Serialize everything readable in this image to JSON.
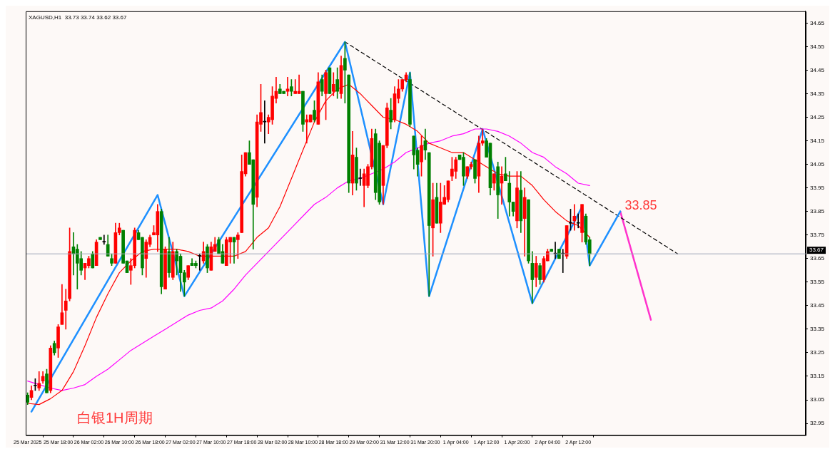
{
  "chart_data": {
    "type": "candlestick",
    "title": "XAGUSD,H1  33.73 33.74 33.62 33.67",
    "annotations": [
      "白银1H周期",
      "33.85"
    ],
    "categories": [
      "25 Mar 2025",
      null,
      null,
      null,
      null,
      null,
      null,
      null,
      "25 Mar 18:00",
      null,
      null,
      null,
      null,
      null,
      null,
      null,
      "26 Mar 02:00",
      null,
      null,
      null,
      null,
      null,
      null,
      null,
      "26 Mar 10:00",
      null,
      null,
      null,
      null,
      null,
      null,
      null,
      "26 Mar 18:00",
      null,
      null,
      null,
      null,
      null,
      null,
      null,
      "27 Mar 02:00",
      null,
      null,
      null,
      null,
      null,
      null,
      null,
      "27 Mar 10:00",
      null,
      null,
      null,
      null,
      null,
      null,
      null,
      "27 Mar 18:00",
      null,
      null,
      null,
      null,
      null,
      null,
      null,
      "28 Mar 02:00",
      null,
      null,
      null,
      null,
      null,
      null,
      null,
      "28 Mar 10:00",
      null,
      null,
      null,
      null,
      null,
      null,
      null,
      "28 Mar 18:00",
      null,
      null,
      null,
      null,
      null,
      null,
      null,
      "29 Mar 02:00",
      null,
      null,
      null,
      null,
      null,
      null,
      null,
      "31 Mar 12:00",
      null,
      null,
      null,
      null,
      null,
      null,
      null,
      "31 Mar 20:00",
      null,
      null,
      null,
      null,
      null,
      null,
      null,
      "1 Apr 04:00",
      null,
      null,
      null,
      null,
      null,
      null,
      null,
      "1 Apr 12:00",
      null,
      null,
      null,
      null,
      null,
      null,
      null,
      "1 Apr 20:00",
      null,
      null,
      null,
      null,
      null,
      null,
      null,
      "2 Apr 04:00",
      null,
      null,
      null,
      null,
      null,
      null,
      null,
      "2 Apr 12:00",
      null,
      null,
      null,
      null,
      null,
      null,
      null,
      null,
      null,
      null,
      null,
      null,
      null,
      null,
      null,
      null,
      null,
      null,
      null,
      null,
      null,
      null,
      null,
      null,
      null,
      null,
      null,
      null,
      null,
      null,
      null,
      null,
      null,
      null,
      null,
      null,
      null,
      null,
      null,
      null,
      null,
      null,
      null,
      null,
      null,
      null,
      null,
      null,
      null,
      null,
      null,
      null,
      null,
      null,
      null,
      null,
      null,
      null,
      null
    ],
    "ohlc": [
      [
        33.07,
        33.08,
        33.03,
        33.04
      ],
      [
        33.06,
        33.11,
        33.05,
        33.09
      ],
      [
        33.11,
        33.14,
        33.09,
        33.11
      ],
      [
        33.1,
        33.17,
        33.09,
        33.12
      ],
      [
        33.13,
        33.17,
        33.12,
        33.15
      ],
      [
        33.16,
        33.18,
        33.08,
        33.08
      ],
      [
        33.09,
        33.28,
        33.08,
        33.27
      ],
      [
        33.29,
        33.3,
        33.24,
        33.25
      ],
      [
        33.27,
        33.37,
        33.23,
        33.36
      ],
      [
        33.37,
        33.54,
        33.37,
        33.42
      ],
      [
        33.43,
        33.52,
        33.35,
        33.47
      ],
      [
        33.48,
        33.78,
        33.47,
        33.68
      ],
      [
        33.7,
        33.76,
        33.58,
        33.67
      ],
      [
        33.69,
        33.71,
        33.52,
        33.63
      ],
      [
        33.65,
        33.68,
        33.58,
        33.6
      ],
      [
        33.61,
        33.63,
        33.56,
        33.63
      ],
      [
        33.62,
        33.66,
        33.61,
        33.65
      ],
      [
        33.67,
        33.68,
        33.61,
        33.61
      ],
      [
        33.62,
        33.73,
        33.62,
        33.72
      ],
      [
        33.74,
        33.74,
        33.73,
        33.73
      ],
      [
        33.72,
        33.75,
        33.71,
        33.72
      ],
      [
        33.71,
        33.75,
        33.66,
        33.66
      ],
      [
        33.65,
        33.67,
        33.62,
        33.63
      ],
      [
        33.63,
        33.8,
        33.63,
        33.76
      ],
      [
        33.76,
        33.8,
        33.75,
        33.78
      ],
      [
        33.77,
        33.77,
        33.63,
        33.63
      ],
      [
        33.64,
        33.64,
        33.59,
        33.59
      ],
      [
        33.6,
        33.65,
        33.54,
        33.62
      ],
      [
        33.62,
        33.78,
        33.61,
        33.77
      ],
      [
        33.76,
        33.77,
        33.73,
        33.73
      ],
      [
        33.74,
        33.74,
        33.58,
        33.61
      ],
      [
        33.65,
        33.73,
        33.57,
        33.72
      ],
      [
        33.71,
        33.75,
        33.7,
        33.74
      ],
      [
        33.75,
        33.79,
        33.75,
        33.76
      ],
      [
        33.75,
        33.88,
        33.68,
        33.85
      ],
      [
        33.85,
        33.86,
        33.5,
        33.53
      ],
      [
        33.52,
        33.7,
        33.52,
        33.69
      ],
      [
        33.68,
        33.74,
        33.57,
        33.59
      ],
      [
        33.57,
        33.72,
        33.56,
        33.68
      ],
      [
        33.68,
        33.69,
        33.58,
        33.64
      ],
      [
        33.66,
        33.67,
        33.51,
        33.59
      ],
      [
        33.59,
        33.6,
        33.49,
        33.55
      ],
      [
        33.57,
        33.62,
        33.56,
        33.62
      ],
      [
        33.63,
        33.65,
        33.62,
        33.62
      ],
      [
        33.63,
        33.64,
        33.61,
        33.62
      ],
      [
        33.66,
        33.67,
        33.6,
        33.66
      ],
      [
        33.64,
        33.72,
        33.63,
        33.68
      ],
      [
        33.7,
        33.71,
        33.59,
        33.61
      ],
      [
        33.6,
        33.72,
        33.6,
        33.7
      ],
      [
        33.68,
        33.74,
        33.68,
        33.71
      ],
      [
        33.73,
        33.74,
        33.67,
        33.67
      ],
      [
        33.68,
        33.71,
        33.63,
        33.63
      ],
      [
        33.62,
        33.74,
        33.62,
        33.73
      ],
      [
        33.72,
        33.74,
        33.63,
        33.74
      ],
      [
        33.74,
        33.74,
        33.63,
        33.72
      ],
      [
        33.73,
        33.76,
        33.65,
        33.75
      ],
      [
        33.76,
        34.09,
        33.76,
        34.02
      ],
      [
        34.01,
        34.1,
        34.0,
        34.1
      ],
      [
        34.1,
        34.15,
        34.05,
        34.05
      ],
      [
        34.07,
        34.07,
        33.69,
        33.88
      ],
      [
        33.91,
        34.26,
        33.87,
        34.23
      ],
      [
        34.22,
        34.39,
        34.19,
        34.27
      ],
      [
        34.23,
        34.32,
        34.14,
        34.23
      ],
      [
        34.23,
        34.26,
        34.18,
        34.25
      ],
      [
        34.24,
        34.38,
        34.22,
        34.34
      ],
      [
        34.33,
        34.42,
        34.31,
        34.36
      ],
      [
        34.37,
        34.39,
        34.35,
        34.35
      ],
      [
        34.36,
        34.36,
        34.35,
        34.35
      ],
      [
        34.36,
        34.42,
        34.34,
        34.37
      ],
      [
        34.38,
        34.41,
        34.34,
        34.36
      ],
      [
        34.35,
        34.41,
        34.35,
        34.36
      ],
      [
        34.35,
        34.43,
        34.35,
        34.36
      ],
      [
        34.36,
        34.36,
        34.19,
        34.22
      ],
      [
        34.23,
        34.26,
        34.14,
        34.24
      ],
      [
        34.23,
        34.26,
        34.23,
        34.26
      ],
      [
        34.28,
        34.32,
        34.23,
        34.24
      ],
      [
        34.22,
        34.44,
        34.22,
        34.4
      ],
      [
        34.41,
        34.43,
        34.34,
        34.36
      ],
      [
        34.35,
        34.45,
        34.24,
        34.44
      ],
      [
        34.46,
        34.46,
        34.35,
        34.35
      ],
      [
        34.36,
        34.44,
        34.34,
        34.39
      ],
      [
        34.41,
        34.46,
        34.33,
        34.36
      ],
      [
        34.35,
        34.51,
        34.33,
        34.47
      ],
      [
        34.5,
        34.57,
        34.31,
        34.45
      ],
      [
        34.43,
        34.43,
        33.93,
        33.97
      ],
      [
        33.97,
        34.19,
        33.92,
        34.09
      ],
      [
        34.08,
        34.12,
        33.94,
        33.97
      ],
      [
        33.99,
        34.03,
        33.96,
        33.99
      ],
      [
        33.96,
        34.03,
        33.87,
        34.01
      ],
      [
        33.96,
        34.05,
        33.95,
        34.04
      ],
      [
        34.04,
        34.2,
        34.03,
        34.16
      ],
      [
        34.18,
        34.2,
        33.9,
        33.93
      ],
      [
        34.14,
        34.15,
        33.88,
        33.89
      ],
      [
        33.96,
        34.13,
        33.88,
        34.13
      ],
      [
        34.13,
        34.31,
        34.12,
        34.29
      ],
      [
        34.28,
        34.33,
        34.2,
        34.23
      ],
      [
        34.24,
        34.38,
        34.23,
        34.35
      ],
      [
        34.33,
        34.41,
        34.31,
        34.37
      ],
      [
        34.37,
        34.41,
        34.36,
        34.41
      ],
      [
        34.41,
        34.44,
        34.4,
        34.43
      ],
      [
        34.41,
        34.44,
        34.21,
        34.22
      ],
      [
        34.17,
        34.17,
        34.03,
        34.09
      ],
      [
        34.11,
        34.12,
        34.0,
        34.05
      ],
      [
        34.06,
        34.17,
        34.0,
        34.13
      ],
      [
        34.15,
        34.2,
        34.07,
        34.11
      ],
      [
        34.1,
        34.1,
        33.49,
        33.79
      ],
      [
        33.78,
        33.97,
        33.66,
        33.9
      ],
      [
        33.91,
        33.97,
        33.8,
        33.8
      ],
      [
        33.8,
        33.97,
        33.76,
        33.89
      ],
      [
        33.88,
        33.96,
        33.88,
        33.91
      ],
      [
        33.9,
        33.98,
        33.89,
        33.98
      ],
      [
        34.0,
        34.08,
        33.98,
        34.03
      ],
      [
        34.02,
        34.08,
        33.99,
        34.07
      ],
      [
        34.09,
        34.09,
        34.07,
        34.07
      ],
      [
        34.08,
        34.1,
        33.96,
        34.0
      ],
      [
        34.0,
        34.04,
        33.99,
        34.04
      ],
      [
        34.04,
        34.06,
        34.03,
        34.05
      ],
      [
        34.07,
        34.07,
        33.97,
        33.99
      ],
      [
        34.0,
        34.17,
        33.93,
        34.14
      ],
      [
        34.14,
        34.2,
        34.13,
        34.15
      ],
      [
        34.15,
        34.16,
        34.08,
        34.08
      ],
      [
        34.14,
        34.14,
        33.92,
        33.95
      ],
      [
        33.97,
        34.01,
        33.94,
        34.01
      ],
      [
        34.04,
        34.06,
        33.82,
        33.92
      ],
      [
        33.97,
        34.04,
        33.88,
        34.0
      ],
      [
        34.01,
        34.08,
        33.98,
        33.98
      ],
      [
        33.97,
        34.02,
        33.83,
        33.89
      ],
      [
        33.89,
        33.89,
        33.83,
        33.85
      ],
      [
        33.81,
        34.02,
        33.78,
        33.95
      ],
      [
        33.94,
        34.02,
        33.76,
        33.81
      ],
      [
        33.82,
        33.95,
        33.66,
        33.91
      ],
      [
        33.9,
        33.9,
        33.63,
        33.64
      ],
      [
        33.63,
        33.68,
        33.46,
        33.56
      ],
      [
        33.57,
        33.66,
        33.53,
        33.63
      ],
      [
        33.62,
        33.63,
        33.54,
        33.56
      ],
      [
        33.56,
        33.66,
        33.55,
        33.65
      ],
      [
        33.64,
        33.69,
        33.64,
        33.68
      ],
      [
        33.69,
        33.69,
        33.68,
        33.68
      ],
      [
        33.67,
        33.72,
        33.65,
        33.67
      ],
      [
        33.69,
        33.69,
        33.65,
        33.65
      ],
      [
        33.67,
        33.69,
        33.59,
        33.67
      ],
      [
        33.66,
        33.79,
        33.65,
        33.79
      ],
      [
        33.8,
        33.86,
        33.77,
        33.8
      ],
      [
        33.81,
        33.88,
        33.77,
        33.83
      ],
      [
        33.8,
        33.84,
        33.78,
        33.8
      ],
      [
        33.76,
        33.88,
        33.72,
        33.88
      ],
      [
        33.83,
        33.84,
        33.71,
        33.72
      ],
      [
        33.73,
        33.74,
        33.62,
        33.67
      ],
      null,
      null,
      null,
      null,
      null,
      null,
      null,
      null,
      null,
      null,
      null,
      null,
      null,
      null,
      null,
      null,
      null,
      null,
      null,
      null,
      null,
      null,
      null,
      null,
      null,
      null,
      null,
      null,
      null,
      null,
      null,
      null,
      null,
      null,
      null,
      null,
      null,
      null,
      null,
      null,
      null,
      null,
      null,
      null,
      null,
      null,
      null,
      null,
      null,
      null,
      null,
      null,
      null,
      null,
      null,
      null
    ],
    "colors": [
      "#008000",
      "#ff0000",
      "#000000",
      "#ff0000",
      "#ff0000",
      "#008000",
      "#ff0000",
      "#008000",
      "#ff0000",
      "#ff0000",
      "#ff0000",
      "#ff0000",
      "#008000",
      "#008000",
      "#008000",
      "#ff0000",
      "#ff0000",
      "#008000",
      "#ff0000",
      "#008000",
      "#000000",
      "#008000",
      "#008000",
      "#ff0000",
      "#ff0000",
      "#008000",
      "#008000",
      "#ff0000",
      "#ff0000",
      "#008000",
      "#008000",
      "#ff0000",
      "#ff0000",
      "#ff0000",
      "#ff0000",
      "#008000",
      "#ff0000",
      "#008000",
      "#ff0000",
      "#008000",
      "#008000",
      "#008000",
      "#ff0000",
      "#008000",
      "#008000",
      "#000000",
      "#ff0000",
      "#008000",
      "#ff0000",
      "#ff0000",
      "#008000",
      "#008000",
      "#ff0000",
      "#ff0000",
      "#008000",
      "#ff0000",
      "#ff0000",
      "#ff0000",
      "#008000",
      "#008000",
      "#ff0000",
      "#ff0000",
      "#000000",
      "#ff0000",
      "#ff0000",
      "#ff0000",
      "#008000",
      "#008000",
      "#ff0000",
      "#008000",
      "#ff0000",
      "#ff0000",
      "#008000",
      "#ff0000",
      "#ff0000",
      "#008000",
      "#ff0000",
      "#008000",
      "#ff0000",
      "#008000",
      "#ff0000",
      "#008000",
      "#ff0000",
      "#008000",
      "#008000",
      "#ff0000",
      "#008000",
      "#000000",
      "#ff0000",
      "#ff0000",
      "#ff0000",
      "#008000",
      "#008000",
      "#ff0000",
      "#ff0000",
      "#008000",
      "#ff0000",
      "#ff0000",
      "#ff0000",
      "#ff0000",
      "#008000",
      "#008000",
      "#008000",
      "#ff0000",
      "#008000",
      "#008000",
      "#ff0000",
      "#008000",
      "#ff0000",
      "#ff0000",
      "#ff0000",
      "#ff0000",
      "#ff0000",
      "#008000",
      "#008000",
      "#ff0000",
      "#ff0000",
      "#008000",
      "#ff0000",
      "#ff0000",
      "#008000",
      "#008000",
      "#ff0000",
      "#008000",
      "#ff0000",
      "#008000",
      "#008000",
      "#008000",
      "#ff0000",
      "#008000",
      "#ff0000",
      "#008000",
      "#008000",
      "#ff0000",
      "#008000",
      "#ff0000",
      "#ff0000",
      "#008000",
      "#000000",
      "#008000",
      "#000000",
      "#ff0000",
      "#000000",
      "#ff0000",
      "#000000",
      "#ff0000",
      "#008000",
      "#008000",
      null,
      null,
      null,
      null,
      null,
      null,
      null,
      null,
      null,
      null,
      null,
      null,
      null,
      null,
      null,
      null,
      null,
      null,
      null,
      null,
      null,
      null,
      null,
      null,
      null,
      null,
      null,
      null,
      null,
      null,
      null,
      null,
      null,
      null,
      null,
      null,
      null,
      null,
      null,
      null,
      null,
      null,
      null,
      null,
      null,
      null,
      null,
      null,
      null,
      null,
      null,
      null,
      null,
      null,
      null,
      null
    ],
    "series": [
      {
        "type": "line",
        "color": "#ff0000",
        "values": [
          33.035,
          null,
          null,
          33.03,
          null,
          null,
          33.055,
          null,
          null,
          33.09,
          null,
          null,
          33.17,
          null,
          null,
          33.28,
          null,
          null,
          33.4,
          null,
          null,
          33.5,
          null,
          null,
          33.59,
          null,
          null,
          33.64,
          null,
          null,
          33.68,
          null,
          null,
          33.69,
          null,
          null,
          33.69,
          null,
          null,
          33.69,
          null,
          null,
          33.68,
          null,
          null,
          33.66,
          null,
          null,
          33.66,
          null,
          null,
          33.66,
          null,
          null,
          33.66,
          null,
          null,
          33.68,
          null,
          null,
          33.74,
          null,
          null,
          33.78,
          null,
          null,
          33.87,
          null,
          null,
          33.99,
          null,
          null,
          34.11,
          null,
          null,
          34.23,
          null,
          null,
          34.32,
          null,
          null,
          34.37,
          null,
          null,
          34.39,
          null,
          null,
          34.35,
          null,
          null,
          34.3,
          null,
          null,
          34.25,
          null,
          null,
          34.24,
          null,
          null,
          34.22,
          null,
          null,
          34.19,
          null,
          null,
          34.14,
          null,
          null,
          34.12,
          null,
          null,
          34.1,
          null,
          null,
          34.1,
          null,
          null,
          34.07,
          null,
          null,
          34.04,
          null,
          null,
          34.01,
          null,
          null,
          34.0,
          null,
          null,
          34.0,
          null,
          null,
          33.96,
          null,
          null,
          33.9,
          null,
          null,
          33.85,
          null,
          null,
          33.81,
          null,
          null,
          33.79,
          null,
          null,
          33.74,
          null,
          null,
          null,
          null,
          null,
          null,
          null,
          null,
          null,
          null,
          null,
          null,
          null,
          null,
          null,
          null,
          null,
          null,
          null,
          null,
          null,
          null,
          null,
          null,
          null,
          null,
          null,
          null,
          null,
          null,
          null,
          null,
          null,
          null,
          null,
          null,
          null,
          null,
          null,
          null,
          null,
          null,
          null,
          null,
          null,
          null,
          null,
          null,
          null,
          null,
          null,
          null,
          null,
          null,
          null,
          null
        ]
      },
      {
        "type": "line",
        "color": "#ff00ff",
        "values": [
          33.13,
          null,
          null,
          33.115,
          null,
          null,
          33.1,
          null,
          null,
          33.09,
          null,
          null,
          33.1,
          null,
          null,
          33.115,
          null,
          null,
          33.15,
          null,
          null,
          33.18,
          null,
          null,
          33.22,
          null,
          null,
          33.26,
          null,
          null,
          33.29,
          null,
          null,
          33.32,
          null,
          null,
          33.35,
          null,
          null,
          33.38,
          null,
          null,
          33.41,
          null,
          null,
          33.43,
          null,
          null,
          33.44,
          null,
          null,
          33.47,
          null,
          null,
          33.52,
          null,
          null,
          33.58,
          null,
          null,
          33.63,
          null,
          null,
          33.68,
          null,
          null,
          33.73,
          null,
          null,
          33.78,
          null,
          null,
          33.83,
          null,
          null,
          33.88,
          null,
          null,
          33.91,
          null,
          null,
          33.95,
          null,
          null,
          33.98,
          null,
          null,
          33.99,
          null,
          null,
          34.01,
          null,
          null,
          34.03,
          null,
          null,
          34.06,
          null,
          null,
          34.1,
          null,
          null,
          34.12,
          null,
          null,
          34.14,
          null,
          null,
          34.15,
          null,
          null,
          34.17,
          null,
          null,
          34.18,
          null,
          null,
          34.2,
          null,
          null,
          34.2,
          null,
          null,
          34.19,
          null,
          null,
          34.17,
          null,
          null,
          34.14,
          null,
          null,
          34.1,
          null,
          null,
          34.08,
          null,
          null,
          34.04,
          null,
          null,
          34.01,
          null,
          null,
          33.97,
          null,
          null,
          33.96,
          null,
          null,
          null,
          null,
          null,
          null,
          null,
          null,
          null,
          null,
          null,
          null,
          null,
          null,
          null,
          null,
          null,
          null,
          null,
          null,
          null,
          null,
          null,
          null,
          null,
          null,
          null,
          null,
          null,
          null,
          null,
          null,
          null,
          null,
          null,
          null,
          null,
          null,
          null,
          null,
          null,
          null,
          null,
          null,
          null,
          null,
          null,
          null,
          null,
          null,
          null,
          null,
          null,
          null,
          null,
          null
        ]
      },
      {
        "type": "line",
        "color": "#1e90ff",
        "values": [
          null,
          33.0,
          null,
          null,
          null,
          null,
          null,
          null,
          null,
          null,
          null,
          null,
          null,
          null,
          null,
          null,
          null,
          null,
          null,
          null,
          null,
          null,
          null,
          null,
          null,
          null,
          null,
          null,
          null,
          null,
          null,
          null,
          null,
          null,
          33.92,
          null,
          null,
          null,
          null,
          null,
          null,
          33.49,
          null,
          null,
          null,
          null,
          null,
          null,
          null,
          null,
          null,
          null,
          null,
          null,
          null,
          null,
          null,
          null,
          null,
          null,
          null,
          null,
          null,
          null,
          null,
          null,
          null,
          null,
          null,
          null,
          null,
          null,
          null,
          null,
          null,
          null,
          null,
          null,
          null,
          null,
          null,
          null,
          null,
          34.57,
          null,
          null,
          null,
          null,
          null,
          null,
          null,
          null,
          null,
          33.88,
          null,
          null,
          null,
          null,
          null,
          null,
          34.44,
          null,
          null,
          null,
          null,
          33.49,
          null,
          null,
          null,
          null,
          null,
          null,
          null,
          null,
          null,
          null,
          null,
          null,
          null,
          34.2,
          null,
          null,
          null,
          null,
          null,
          null,
          null,
          null,
          null,
          null,
          null,
          null,
          33.46,
          null,
          null,
          null,
          null,
          null,
          null,
          null,
          null,
          null,
          null,
          null,
          null,
          33.87,
          null,
          33.62,
          null,
          null,
          null,
          null,
          null,
          null,
          null,
          33.85,
          null,
          null,
          null,
          null,
          null,
          null,
          null,
          null,
          null,
          null,
          null,
          null,
          null,
          null,
          null,
          null,
          null,
          null,
          null,
          null,
          null,
          null,
          null,
          null,
          null,
          null,
          null,
          null,
          null,
          null,
          null,
          null,
          null,
          null,
          null,
          null,
          null,
          null,
          null,
          null,
          null,
          null,
          null,
          null,
          null,
          null,
          null,
          null
        ]
      },
      {
        "type": "line",
        "color": "#000000",
        "line_style": "dashed",
        "values": [
          null,
          null,
          null,
          null,
          null,
          null,
          null,
          null,
          null,
          null,
          null,
          null,
          null,
          null,
          null,
          null,
          null,
          null,
          null,
          null,
          null,
          null,
          null,
          null,
          null,
          null,
          null,
          null,
          null,
          null,
          null,
          null,
          null,
          null,
          null,
          null,
          null,
          null,
          null,
          null,
          null,
          null,
          null,
          null,
          null,
          null,
          null,
          null,
          null,
          null,
          null,
          null,
          null,
          null,
          null,
          null,
          null,
          null,
          null,
          null,
          null,
          null,
          null,
          null,
          null,
          null,
          null,
          null,
          null,
          null,
          null,
          null,
          null,
          null,
          null,
          null,
          null,
          null,
          null,
          null,
          null,
          null,
          null,
          34.57,
          null,
          null,
          null,
          null,
          null,
          null,
          null,
          null,
          null,
          null,
          null,
          null,
          null,
          null,
          null,
          null,
          null,
          null,
          null,
          null,
          null,
          null,
          null,
          null,
          null,
          null,
          null,
          null,
          null,
          null,
          null,
          null,
          null,
          null,
          null,
          null,
          null,
          null,
          null,
          null,
          null,
          null,
          null,
          null,
          null,
          null,
          null,
          null,
          null,
          null,
          null,
          null,
          null,
          null,
          null,
          null,
          null,
          null,
          null,
          null,
          null,
          null,
          null,
          null,
          null,
          null,
          null,
          null,
          null,
          null,
          null,
          null,
          null,
          null,
          null,
          null,
          null,
          null,
          null,
          null,
          null,
          null,
          null,
          null,
          null,
          null,
          33.67,
          null,
          null,
          null,
          null,
          null,
          null,
          null,
          null,
          null,
          null,
          null,
          null,
          null,
          null,
          null,
          null,
          null,
          null,
          null,
          null,
          null,
          null,
          null,
          null,
          null,
          null,
          null,
          null,
          null,
          null,
          null,
          null,
          null
        ]
      },
      {
        "type": "line",
        "color": "#ff33cc",
        "values": [
          null,
          null,
          null,
          null,
          null,
          null,
          null,
          null,
          null,
          null,
          null,
          null,
          null,
          null,
          null,
          null,
          null,
          null,
          null,
          null,
          null,
          null,
          null,
          null,
          null,
          null,
          null,
          null,
          null,
          null,
          null,
          null,
          null,
          null,
          null,
          null,
          null,
          null,
          null,
          null,
          null,
          null,
          null,
          null,
          null,
          null,
          null,
          null,
          null,
          null,
          null,
          null,
          null,
          null,
          null,
          null,
          null,
          null,
          null,
          null,
          null,
          null,
          null,
          null,
          null,
          null,
          null,
          null,
          null,
          null,
          null,
          null,
          null,
          null,
          null,
          null,
          null,
          null,
          null,
          null,
          null,
          null,
          null,
          null,
          null,
          null,
          null,
          null,
          null,
          null,
          null,
          null,
          null,
          null,
          null,
          null,
          null,
          null,
          null,
          null,
          null,
          null,
          null,
          null,
          null,
          null,
          null,
          null,
          null,
          null,
          null,
          null,
          null,
          null,
          null,
          null,
          null,
          null,
          null,
          null,
          null,
          null,
          null,
          null,
          null,
          null,
          null,
          null,
          null,
          null,
          null,
          null,
          null,
          null,
          null,
          null,
          null,
          null,
          null,
          null,
          null,
          null,
          null,
          null,
          null,
          null,
          null,
          null,
          null,
          null,
          null,
          null,
          null,
          null,
          null,
          33.85,
          null,
          null,
          null,
          null,
          null,
          null,
          null,
          33.39,
          null,
          null,
          null,
          null,
          null,
          null,
          null,
          null,
          null,
          null,
          null,
          null,
          null,
          null,
          null,
          null,
          null,
          null,
          null,
          null,
          null,
          null,
          null,
          null,
          null,
          null,
          null,
          null,
          null,
          null,
          null,
          null,
          null,
          null,
          null,
          null,
          null,
          null,
          null,
          null
        ]
      }
    ],
    "ylim": [
      32.9,
      34.7
    ],
    "yticks": [
      32.95,
      33.05,
      33.15,
      33.25,
      33.35,
      33.45,
      33.55,
      33.65,
      33.75,
      33.85,
      33.95,
      34.05,
      34.15,
      34.25,
      34.35,
      34.45,
      34.55,
      34.65
    ],
    "ref_lines": [
      {
        "axis": "y",
        "value": 33.67,
        "label": "33.67",
        "color": "#a0a8b8"
      }
    ]
  }
}
